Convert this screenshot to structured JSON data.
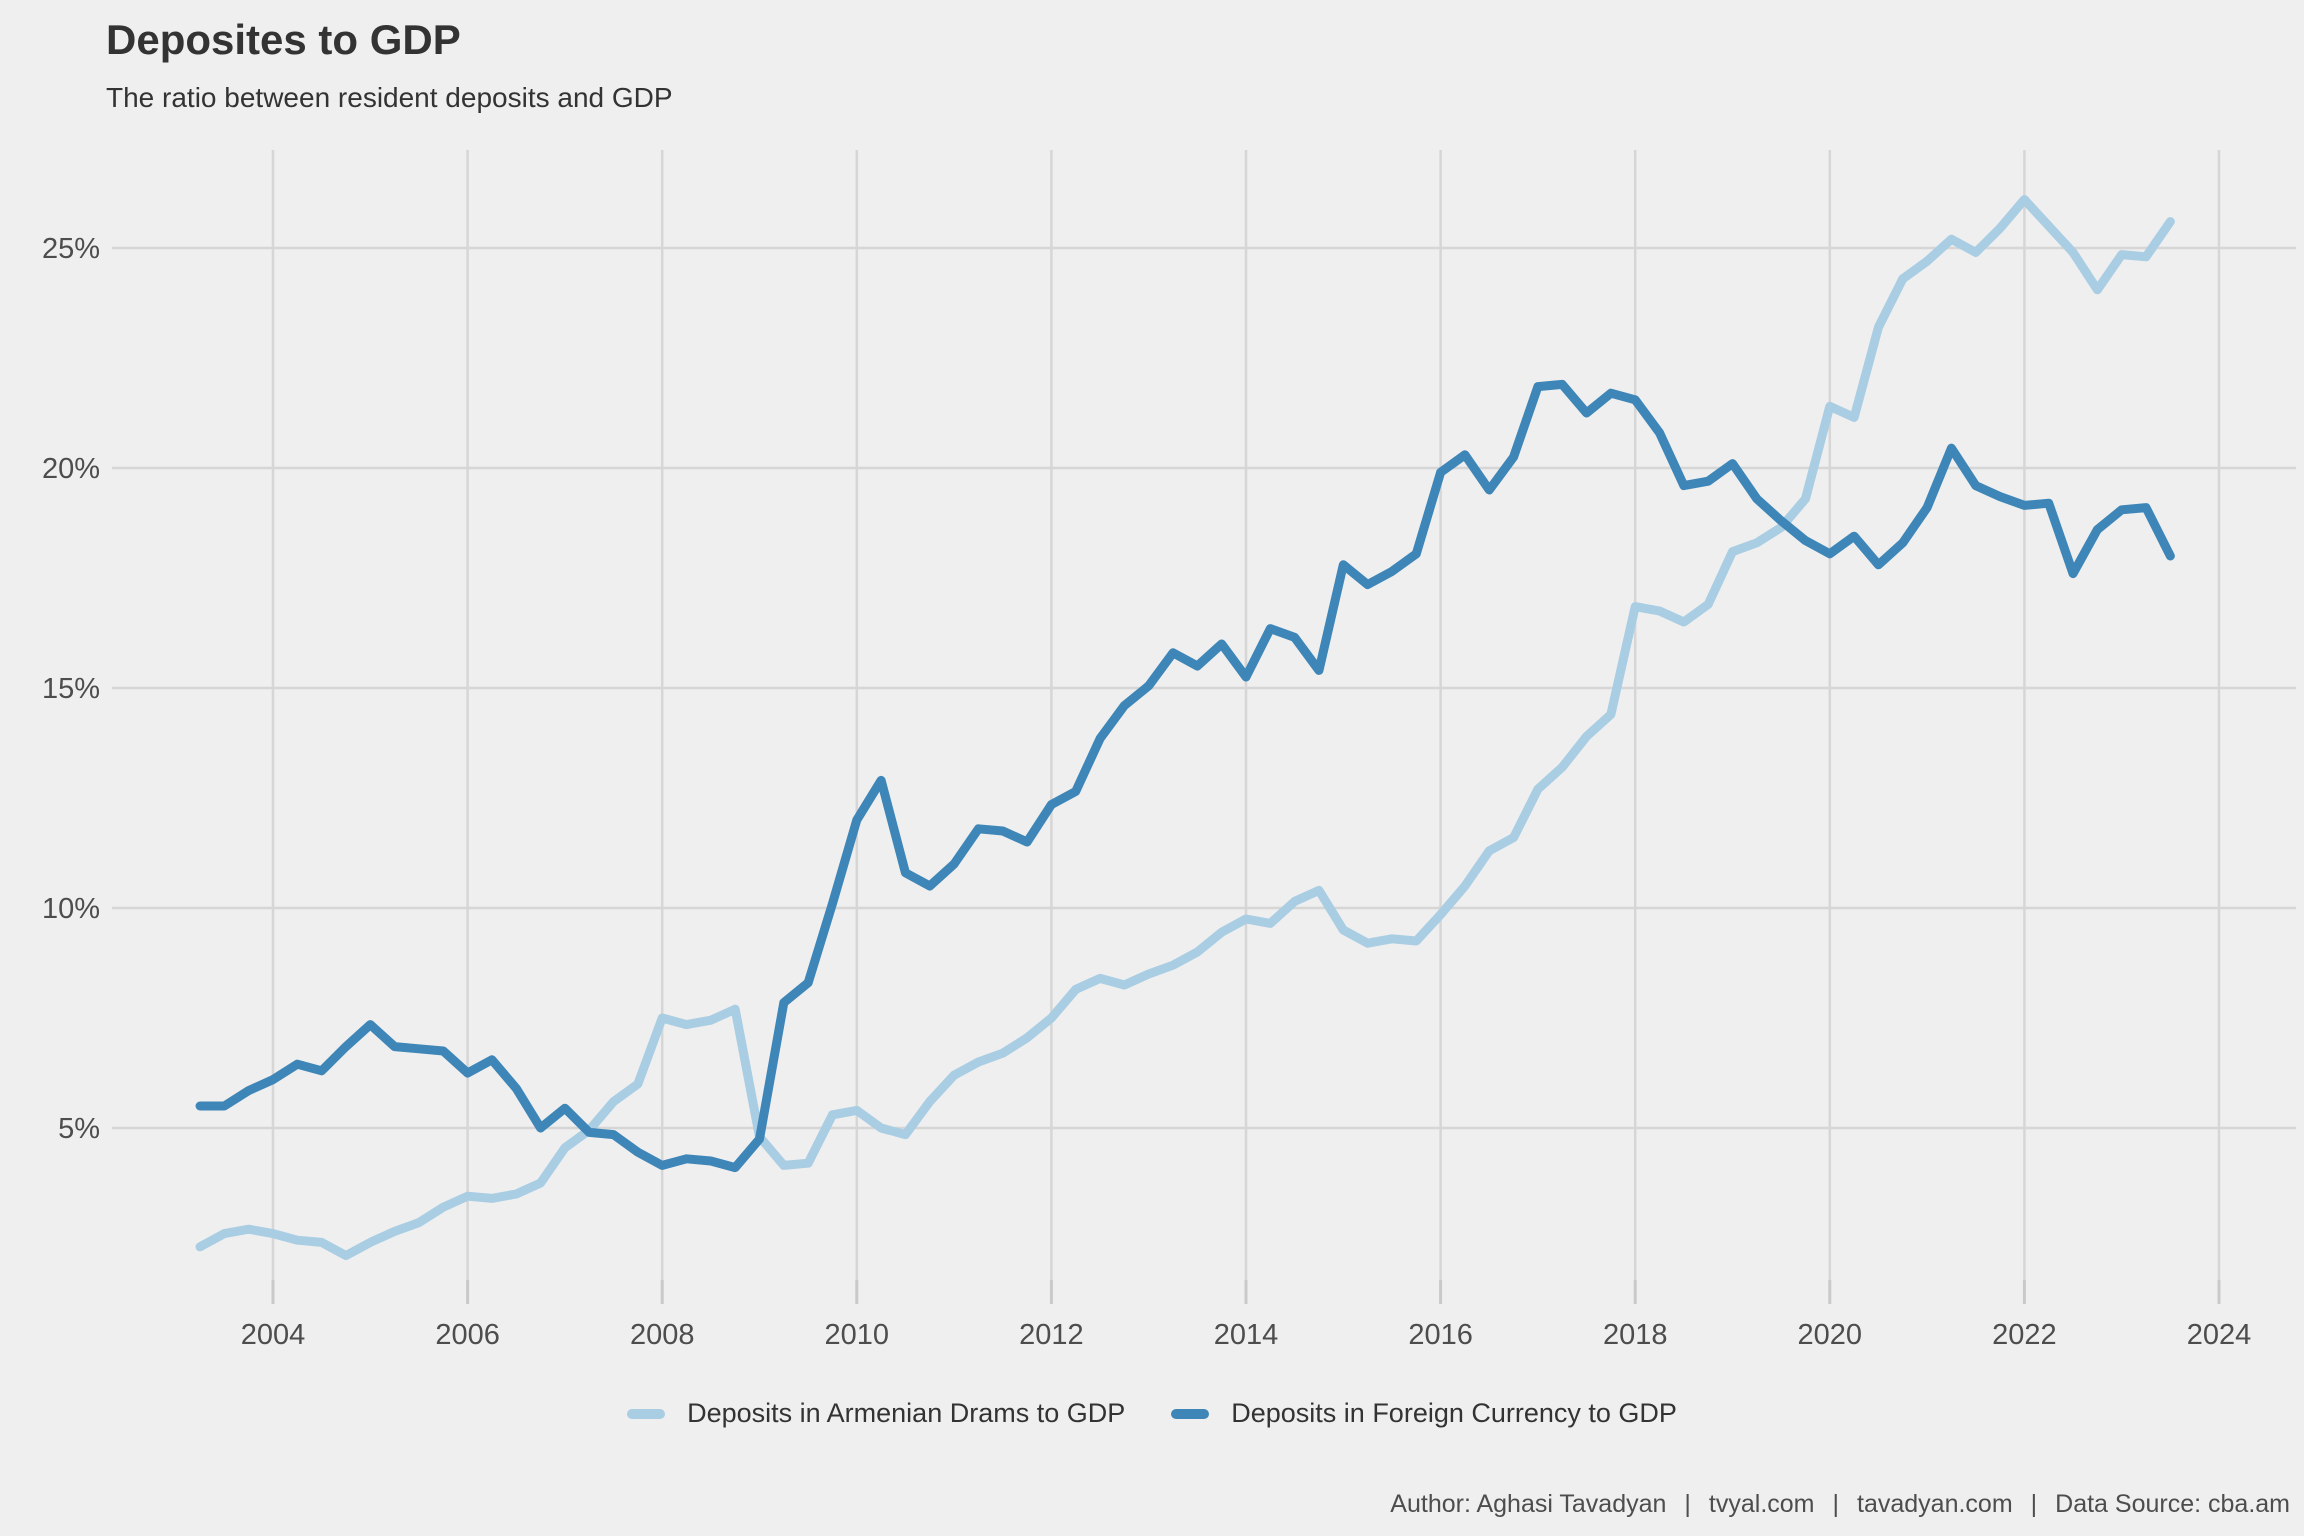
{
  "title": "Deposites to GDP",
  "subtitle": "The ratio between resident deposits and GDP",
  "caption": {
    "author": "Author: Aghasi Tavadyan",
    "separator": "|",
    "site1": "tvyal.com",
    "site2": "tavadyan.com",
    "source": "Data Source: cba.am"
  },
  "colors": {
    "background": "#EFEFEF",
    "gridline": "#D6D6D6",
    "tick": "#C9C9C9",
    "title_text": "#333333",
    "axis_text": "#4D4D4D",
    "legend_text": "#333333",
    "caption_text": "#4D4D4D",
    "series_drams": "#A9CDE3",
    "series_foreign": "#3E86B8"
  },
  "chart_data": {
    "type": "line",
    "title": "Deposites to GDP",
    "subtitle": "The ratio between resident deposits and GDP",
    "xlabel": "",
    "ylabel": "",
    "xlim": [
      2002.3,
      2024.8
    ],
    "ylim": [
      1.5,
      27.2
    ],
    "grid": "major gridlines only; vertical every 2 years, horizontal every 5%",
    "legend_position": "bottom-center",
    "x_ticks": [
      {
        "value": 2004,
        "label": "2004"
      },
      {
        "value": 2006,
        "label": "2006"
      },
      {
        "value": 2008,
        "label": "2008"
      },
      {
        "value": 2010,
        "label": "2010"
      },
      {
        "value": 2012,
        "label": "2012"
      },
      {
        "value": 2014,
        "label": "2014"
      },
      {
        "value": 2016,
        "label": "2016"
      },
      {
        "value": 2018,
        "label": "2018"
      },
      {
        "value": 2020,
        "label": "2020"
      },
      {
        "value": 2022,
        "label": "2022"
      },
      {
        "value": 2024,
        "label": "2024"
      }
    ],
    "y_ticks": [
      {
        "value": 5,
        "label": "5%"
      },
      {
        "value": 10,
        "label": "10%"
      },
      {
        "value": 15,
        "label": "15%"
      },
      {
        "value": 20,
        "label": "20%"
      },
      {
        "value": 25,
        "label": "25%"
      }
    ],
    "x": [
      2003.25,
      2003.5,
      2003.75,
      2004,
      2004.25,
      2004.5,
      2004.75,
      2005,
      2005.25,
      2005.5,
      2005.75,
      2006,
      2006.25,
      2006.5,
      2006.75,
      2007,
      2007.25,
      2007.5,
      2007.75,
      2008,
      2008.25,
      2008.5,
      2008.75,
      2009,
      2009.25,
      2009.5,
      2009.75,
      2010,
      2010.25,
      2010.5,
      2010.75,
      2011,
      2011.25,
      2011.5,
      2011.75,
      2012,
      2012.25,
      2012.5,
      2012.75,
      2013,
      2013.25,
      2013.5,
      2013.75,
      2014,
      2014.25,
      2014.5,
      2014.75,
      2015,
      2015.25,
      2015.5,
      2015.75,
      2016,
      2016.25,
      2016.5,
      2016.75,
      2017,
      2017.25,
      2017.5,
      2017.75,
      2018,
      2018.25,
      2018.5,
      2018.75,
      2019,
      2019.25,
      2019.5,
      2019.75,
      2020,
      2020.25,
      2020.5,
      2020.75,
      2021,
      2021.25,
      2021.5,
      2021.75,
      2022,
      2022.25,
      2022.5,
      2022.75,
      2023,
      2023.25,
      2023.5
    ],
    "series": [
      {
        "name": "Deposits in Armenian Drams to GDP",
        "color": "#A9CDE3",
        "values": [
          2.3,
          2.6,
          2.7,
          2.6,
          2.45,
          2.4,
          2.1,
          2.4,
          2.65,
          2.85,
          3.2,
          3.45,
          3.4,
          3.5,
          3.75,
          4.55,
          4.95,
          5.6,
          6.0,
          7.5,
          7.35,
          7.45,
          7.7,
          4.8,
          4.15,
          4.2,
          5.3,
          5.4,
          5.0,
          4.85,
          5.6,
          6.2,
          6.5,
          6.7,
          7.05,
          7.5,
          8.15,
          8.4,
          8.25,
          8.5,
          8.7,
          9.0,
          9.45,
          9.75,
          9.65,
          10.15,
          10.4,
          9.5,
          9.2,
          9.3,
          9.25,
          9.85,
          10.5,
          11.3,
          11.6,
          12.7,
          13.2,
          13.9,
          14.4,
          16.85,
          16.75,
          16.5,
          16.9,
          18.1,
          18.3,
          18.65,
          19.3,
          21.4,
          21.15,
          23.2,
          24.3,
          24.7,
          25.2,
          24.9,
          25.45,
          26.1,
          25.5,
          24.9,
          24.05,
          24.85,
          24.8,
          25.6
        ]
      },
      {
        "name": "Deposits in Foreign Currency to GDP",
        "color": "#3E86B8",
        "values": [
          5.5,
          5.5,
          5.85,
          6.1,
          6.45,
          6.3,
          6.85,
          7.35,
          6.85,
          6.8,
          6.75,
          6.25,
          6.55,
          5.9,
          5.0,
          5.45,
          4.9,
          4.85,
          4.45,
          4.15,
          4.3,
          4.25,
          4.1,
          4.75,
          7.85,
          8.3,
          10.1,
          12.0,
          12.9,
          10.8,
          10.5,
          11.0,
          11.8,
          11.75,
          11.5,
          12.35,
          12.65,
          13.85,
          14.6,
          15.05,
          15.8,
          15.5,
          16.0,
          15.25,
          16.35,
          16.15,
          15.4,
          17.8,
          17.35,
          17.65,
          18.05,
          19.9,
          20.3,
          19.5,
          20.25,
          21.85,
          21.9,
          21.25,
          21.7,
          21.55,
          20.8,
          19.6,
          19.7,
          20.1,
          19.3,
          18.8,
          18.35,
          18.05,
          18.45,
          17.8,
          18.3,
          19.1,
          20.45,
          19.6,
          19.35,
          19.15,
          19.2,
          17.6,
          18.6,
          19.05,
          19.1,
          18.0
        ]
      }
    ]
  }
}
